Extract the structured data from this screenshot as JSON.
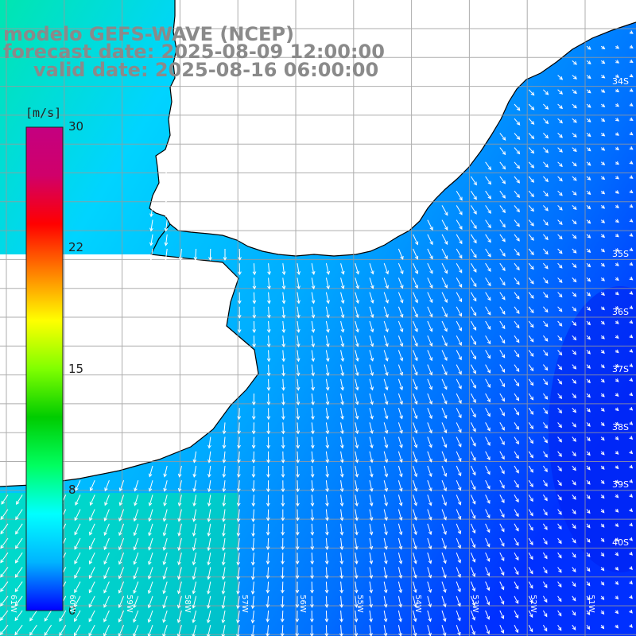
{
  "title": {
    "line1": "modelo GEFS-WAVE (NCEP)",
    "line2": "forecast date: 2025-08-09 12:00:00",
    "line3": "valid date: 2025-08-16 06:00:00"
  },
  "colorbar": {
    "units": "[m/s]",
    "ticks": [
      "30",
      "22",
      "15",
      "8",
      "0"
    ],
    "tick_values": [
      30,
      22,
      15,
      8,
      0
    ],
    "range": [
      0,
      30
    ],
    "colors": [
      "#0000ff",
      "#00b4ff",
      "#00ffff",
      "#00ff60",
      "#00cc00",
      "#80ff00",
      "#ffff00",
      "#ff8000",
      "#ff0000",
      "#d0006a",
      "#c40080"
    ]
  },
  "map": {
    "latitude_labels": [
      "34S",
      "35S",
      "36S",
      "37S",
      "38S",
      "39S",
      "40S"
    ],
    "latitude_values": [
      34,
      35,
      36,
      37,
      38,
      39,
      40
    ],
    "longitude_labels": [
      "61W",
      "60W",
      "59W",
      "58W",
      "57W",
      "56W",
      "55W",
      "54W",
      "53W",
      "52W",
      "51W"
    ],
    "longitude_values": [
      61,
      60,
      59,
      58,
      57,
      56,
      55,
      54,
      53,
      52,
      51
    ],
    "land_color": "#ffffff",
    "coastline_color": "#000000",
    "arrow_color": "#ffffff",
    "wind_field_note": ""
  }
}
